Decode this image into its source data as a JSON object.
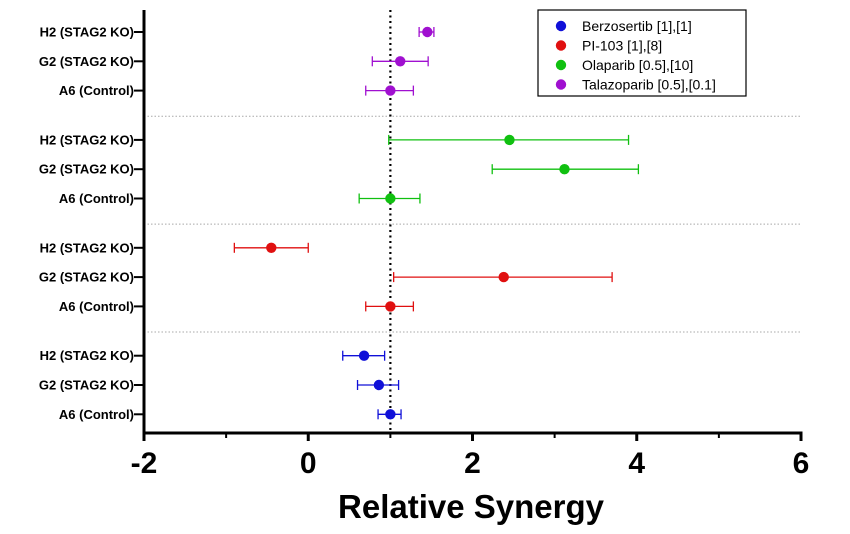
{
  "chart_data": {
    "type": "scatter",
    "subtype": "forest-plot-with-error-bars",
    "xlabel": "Relative Synergy",
    "xlim": [
      -2,
      6
    ],
    "xticks": [
      "-2",
      "0",
      "2",
      "4",
      "6"
    ],
    "reference_line": 1,
    "colors": {
      "Berzosertib": "#1010d8",
      "PI-103": "#e01010",
      "Olaparib": "#10c010",
      "Talazoparib": "#a010d0"
    },
    "legend": {
      "position": "top-right",
      "entries": [
        {
          "name": "Berzosertib",
          "label": "Berzosertib [1],[1]"
        },
        {
          "name": "PI-103",
          "label": "PI-103 [1],[8]"
        },
        {
          "name": "Olaparib",
          "label": "Olaparib [0.5],[10]"
        },
        {
          "name": "Talazoparib",
          "label": "Talazoparib [0.5],[0.1]"
        }
      ]
    },
    "groups": [
      {
        "drug": "Talazoparib",
        "rows": [
          {
            "label": "H2 (STAG2 KO)",
            "value": 1.45,
            "low": 1.35,
            "high": 1.53
          },
          {
            "label": "G2 (STAG2 KO)",
            "value": 1.12,
            "low": 0.78,
            "high": 1.46
          },
          {
            "label": "A6 (Control)",
            "value": 1.0,
            "low": 0.7,
            "high": 1.28
          }
        ]
      },
      {
        "drug": "Olaparib",
        "rows": [
          {
            "label": "H2 (STAG2 KO)",
            "value": 2.45,
            "low": 0.98,
            "high": 3.9
          },
          {
            "label": "G2 (STAG2 KO)",
            "value": 3.12,
            "low": 2.24,
            "high": 4.02
          },
          {
            "label": "A6 (Control)",
            "value": 1.0,
            "low": 0.62,
            "high": 1.36
          }
        ]
      },
      {
        "drug": "PI-103",
        "rows": [
          {
            "label": "H2 (STAG2 KO)",
            "value": -0.45,
            "low": -0.9,
            "high": 0.0
          },
          {
            "label": "G2 (STAG2 KO)",
            "value": 2.38,
            "low": 1.04,
            "high": 3.7
          },
          {
            "label": "A6 (Control)",
            "value": 1.0,
            "low": 0.7,
            "high": 1.28
          }
        ]
      },
      {
        "drug": "Berzosertib",
        "rows": [
          {
            "label": "H2 (STAG2 KO)",
            "value": 0.68,
            "low": 0.42,
            "high": 0.93
          },
          {
            "label": "G2 (STAG2 KO)",
            "value": 0.86,
            "low": 0.6,
            "high": 1.1
          },
          {
            "label": "A6 (Control)",
            "value": 1.0,
            "low": 0.85,
            "high": 1.13
          }
        ]
      }
    ]
  }
}
